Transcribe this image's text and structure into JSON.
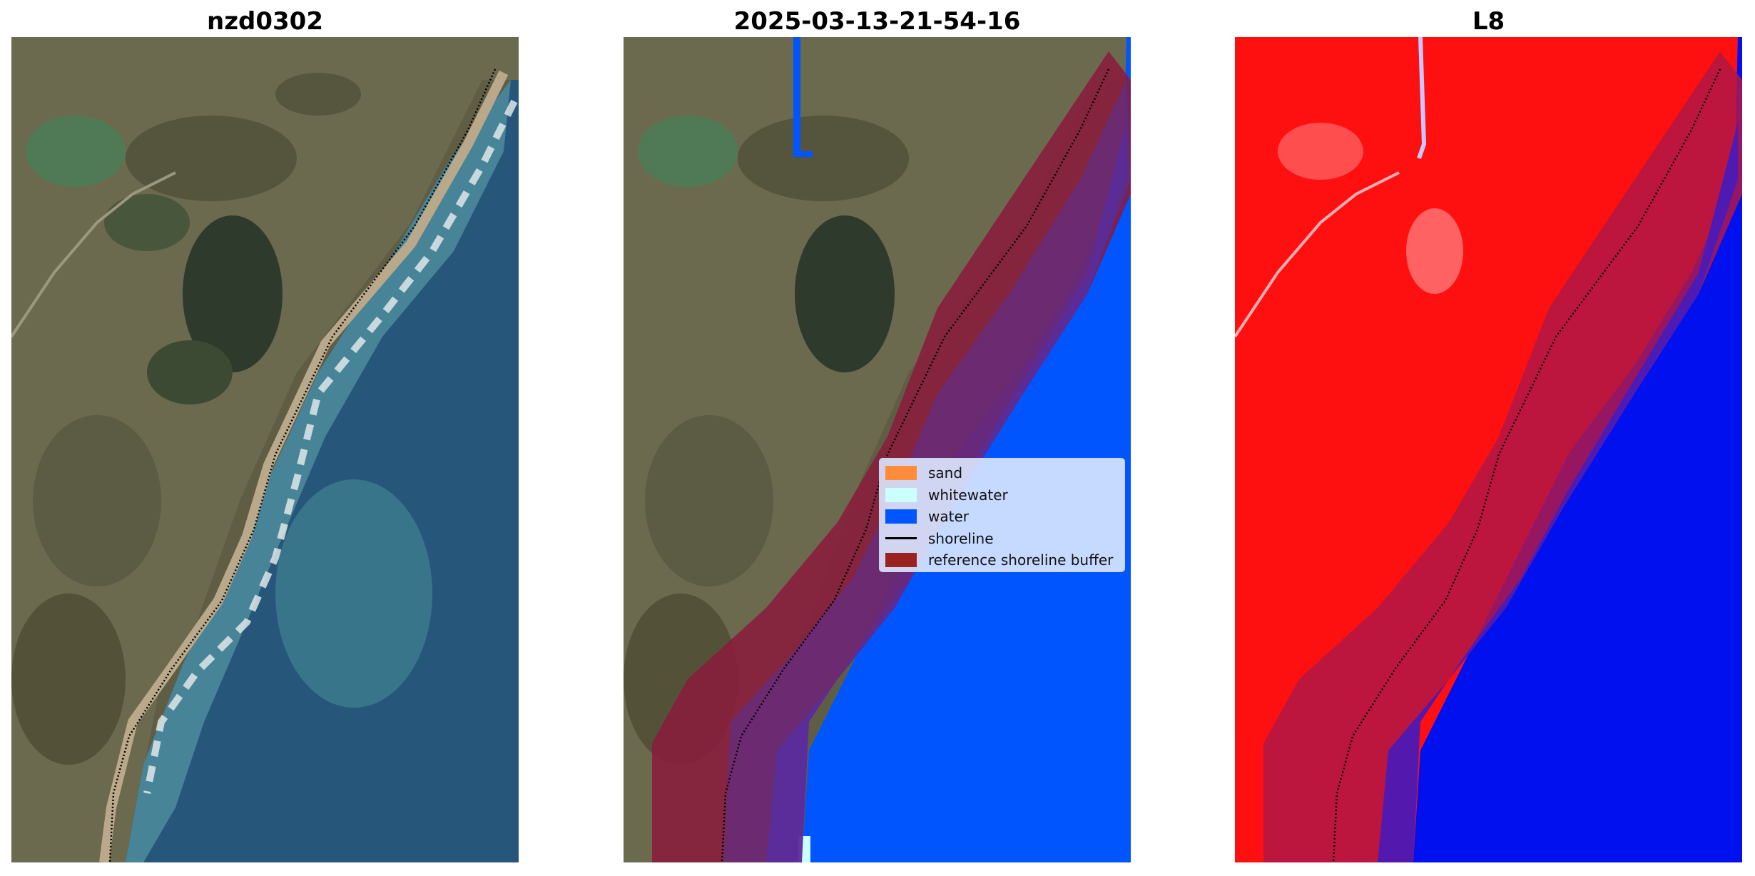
{
  "titles": {
    "left": "nzd0302",
    "middle": "2025-03-13-21-54-16",
    "right": "L8"
  },
  "legend": {
    "items": [
      {
        "label": "sand",
        "color": "#ff8c3b",
        "kind": "patch"
      },
      {
        "label": "whitewater",
        "color": "#ccffff",
        "kind": "patch"
      },
      {
        "label": "water",
        "color": "#0055ff",
        "kind": "patch"
      },
      {
        "label": "shoreline",
        "color": "#000000",
        "kind": "line"
      },
      {
        "label": "reference shoreline buffer",
        "color": "#992222",
        "kind": "patch"
      }
    ]
  },
  "colors": {
    "land": "#6b6a4e",
    "ocean_deep": "#26577a",
    "ocean_shallow": "#4c8a9a",
    "beach": "#b9a88a",
    "water_class": "#0055ff",
    "buffer": "#8b1a3c",
    "index_land": "#ff1010",
    "index_water": "#0010ee"
  }
}
